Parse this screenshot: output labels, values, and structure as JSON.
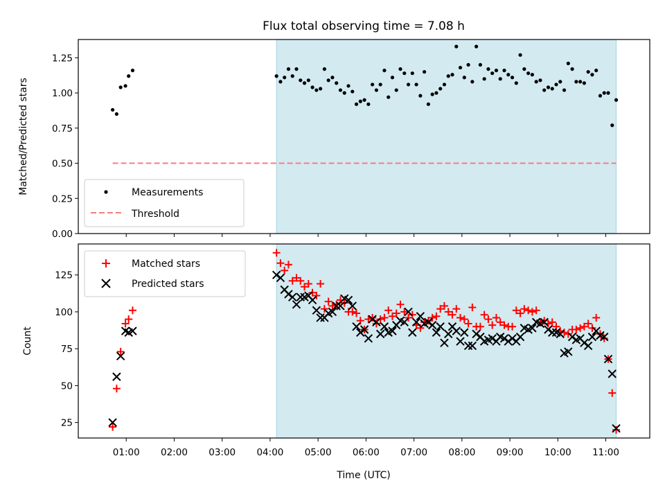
{
  "title": "Flux total observing time = 7.08 h",
  "chart_data": [
    {
      "type": "scatter",
      "ylabel": "Matched/Predicted stars",
      "ylim": [
        0,
        1.38
      ],
      "yticks": [
        0.0,
        0.25,
        0.5,
        0.75,
        1.0,
        1.25
      ],
      "ytick_labels": [
        "0.00",
        "0.25",
        "0.50",
        "0.75",
        "1.00",
        "1.25"
      ],
      "grid": false,
      "legend_position": "lower-left",
      "highlight_span": {
        "start": "04:08",
        "end": "11:13",
        "color": "#d3eaf0"
      },
      "threshold": {
        "name": "Threshold",
        "value": 0.5,
        "start": "00:43",
        "end": "11:13",
        "color": "#f07f7f",
        "style": "dashed"
      },
      "series": [
        {
          "name": "Measurements",
          "marker": "dot",
          "color": "#000000",
          "x": [
            "00:43",
            "00:48",
            "00:53",
            "00:59",
            "01:03",
            "01:08",
            "04:08",
            "04:13",
            "04:18",
            "04:23",
            "04:28",
            "04:33",
            "04:38",
            "04:43",
            "04:48",
            "04:53",
            "04:58",
            "05:03",
            "05:08",
            "05:13",
            "05:18",
            "05:23",
            "05:28",
            "05:33",
            "05:38",
            "05:43",
            "05:48",
            "05:53",
            "05:58",
            "06:03",
            "06:08",
            "06:13",
            "06:18",
            "06:23",
            "06:28",
            "06:33",
            "06:38",
            "06:43",
            "06:48",
            "06:53",
            "06:58",
            "07:03",
            "07:08",
            "07:13",
            "07:18",
            "07:23",
            "07:28",
            "07:33",
            "07:38",
            "07:43",
            "07:48",
            "07:53",
            "07:58",
            "08:03",
            "08:08",
            "08:13",
            "08:18",
            "08:23",
            "08:28",
            "08:33",
            "08:38",
            "08:43",
            "08:48",
            "08:53",
            "08:58",
            "09:03",
            "09:08",
            "09:13",
            "09:18",
            "09:23",
            "09:28",
            "09:33",
            "09:38",
            "09:43",
            "09:48",
            "09:53",
            "09:58",
            "10:03",
            "10:08",
            "10:13",
            "10:18",
            "10:23",
            "10:28",
            "10:33",
            "10:38",
            "10:43",
            "10:48",
            "10:53",
            "10:58",
            "11:03",
            "11:08",
            "11:13"
          ],
          "y": [
            0.88,
            0.85,
            1.04,
            1.05,
            1.12,
            1.16,
            1.12,
            1.08,
            1.11,
            1.17,
            1.12,
            1.17,
            1.09,
            1.07,
            1.09,
            1.04,
            1.02,
            1.03,
            1.17,
            1.09,
            1.11,
            1.07,
            1.02,
            1.0,
            1.05,
            1.01,
            0.92,
            0.94,
            0.95,
            0.92,
            1.06,
            1.02,
            1.06,
            1.16,
            0.97,
            1.11,
            1.02,
            1.17,
            1.14,
            1.06,
            1.14,
            1.06,
            0.98,
            1.15,
            0.92,
            0.99,
            1.0,
            1.03,
            1.06,
            1.12,
            1.13,
            1.33,
            1.18,
            1.11,
            1.2,
            1.08,
            1.33,
            1.2,
            1.1,
            1.17,
            1.14,
            1.16,
            1.1,
            1.16,
            1.13,
            1.11,
            1.07,
            1.27,
            1.17,
            1.14,
            1.13,
            1.08,
            1.09,
            1.02,
            1.04,
            1.03,
            1.06,
            1.08,
            1.02,
            1.21,
            1.17,
            1.08,
            1.08,
            1.07,
            1.15,
            1.13,
            1.16,
            0.98,
            1.0,
            1.0,
            0.77,
            0.95
          ]
        }
      ]
    },
    {
      "type": "scatter",
      "xlabel": "Time (UTC)",
      "ylabel": "Count",
      "xlim": [
        "00:00",
        "11:55"
      ],
      "xticks": [
        "01:00",
        "02:00",
        "03:00",
        "04:00",
        "05:00",
        "06:00",
        "07:00",
        "08:00",
        "09:00",
        "10:00",
        "11:00"
      ],
      "ylim": [
        14.5,
        146
      ],
      "yticks": [
        25,
        50,
        75,
        100,
        125
      ],
      "ytick_labels": [
        "25",
        "50",
        "75",
        "100",
        "125"
      ],
      "grid": false,
      "legend_position": "upper-left",
      "highlight_span": {
        "start": "04:08",
        "end": "11:13",
        "color": "#d3eaf0"
      },
      "series": [
        {
          "name": "Matched stars",
          "marker": "plus",
          "color": "#ff0000",
          "x": [
            "00:43",
            "00:48",
            "00:53",
            "00:59",
            "01:03",
            "01:08",
            "04:08",
            "04:13",
            "04:18",
            "04:23",
            "04:28",
            "04:33",
            "04:38",
            "04:43",
            "04:48",
            "04:53",
            "04:58",
            "05:03",
            "05:08",
            "05:13",
            "05:18",
            "05:23",
            "05:28",
            "05:33",
            "05:38",
            "05:43",
            "05:48",
            "05:53",
            "05:58",
            "06:03",
            "06:08",
            "06:13",
            "06:18",
            "06:23",
            "06:28",
            "06:33",
            "06:38",
            "06:43",
            "06:48",
            "06:53",
            "06:58",
            "07:03",
            "07:08",
            "07:13",
            "07:18",
            "07:23",
            "07:28",
            "07:33",
            "07:38",
            "07:43",
            "07:48",
            "07:53",
            "07:58",
            "08:03",
            "08:08",
            "08:13",
            "08:18",
            "08:23",
            "08:28",
            "08:33",
            "08:38",
            "08:43",
            "08:48",
            "08:53",
            "08:58",
            "09:03",
            "09:08",
            "09:13",
            "09:18",
            "09:23",
            "09:28",
            "09:33",
            "09:38",
            "09:43",
            "09:48",
            "09:53",
            "09:58",
            "10:03",
            "10:08",
            "10:13",
            "10:18",
            "10:23",
            "10:28",
            "10:33",
            "10:38",
            "10:43",
            "10:48",
            "10:53",
            "10:58",
            "11:03",
            "11:08",
            "11:13"
          ],
          "y": [
            22,
            48,
            73,
            92,
            95,
            101,
            140,
            133,
            128,
            132,
            121,
            123,
            121,
            117,
            119,
            113,
            111,
            119,
            102,
            107,
            104,
            105,
            108,
            106,
            100,
            100,
            99,
            94,
            88,
            95,
            96,
            92,
            95,
            96,
            101,
            97,
            99,
            105,
            100,
            96,
            98,
            91,
            89,
            93,
            94,
            96,
            97,
            102,
            104,
            100,
            98,
            102,
            96,
            95,
            92,
            103,
            90,
            90,
            98,
            95,
            91,
            96,
            93,
            91,
            90,
            90,
            101,
            99,
            102,
            101,
            100,
            101,
            93,
            94,
            92,
            93,
            90,
            87,
            86,
            85,
            88,
            88,
            89,
            90,
            92,
            89,
            96,
            85,
            82,
            68,
            45,
            20
          ]
        },
        {
          "name": "Predicted stars",
          "marker": "x",
          "color": "#000000",
          "x": [
            "00:43",
            "00:48",
            "00:53",
            "00:59",
            "01:03",
            "01:08",
            "04:08",
            "04:13",
            "04:18",
            "04:23",
            "04:28",
            "04:33",
            "04:38",
            "04:43",
            "04:48",
            "04:53",
            "04:58",
            "05:03",
            "05:08",
            "05:13",
            "05:18",
            "05:23",
            "05:28",
            "05:33",
            "05:38",
            "05:43",
            "05:48",
            "05:53",
            "05:58",
            "06:03",
            "06:08",
            "06:13",
            "06:18",
            "06:23",
            "06:28",
            "06:33",
            "06:38",
            "06:43",
            "06:48",
            "06:53",
            "06:58",
            "07:03",
            "07:08",
            "07:13",
            "07:18",
            "07:23",
            "07:28",
            "07:33",
            "07:38",
            "07:43",
            "07:48",
            "07:53",
            "07:58",
            "08:03",
            "08:08",
            "08:13",
            "08:18",
            "08:23",
            "08:28",
            "08:33",
            "08:38",
            "08:43",
            "08:48",
            "08:53",
            "08:58",
            "09:03",
            "09:08",
            "09:13",
            "09:18",
            "09:23",
            "09:28",
            "09:33",
            "09:38",
            "09:43",
            "09:48",
            "09:53",
            "09:58",
            "10:03",
            "10:08",
            "10:13",
            "10:18",
            "10:23",
            "10:28",
            "10:33",
            "10:38",
            "10:43",
            "10:48",
            "10:53",
            "10:58",
            "11:03",
            "11:08",
            "11:13"
          ],
          "y": [
            25,
            56,
            70,
            87,
            86,
            87,
            125,
            123,
            115,
            112,
            110,
            105,
            110,
            110,
            111,
            108,
            101,
            96,
            96,
            99,
            100,
            104,
            104,
            109,
            108,
            104,
            90,
            86,
            88,
            82,
            95,
            93,
            85,
            90,
            86,
            87,
            91,
            94,
            93,
            100,
            86,
            93,
            97,
            92,
            93,
            91,
            86,
            90,
            79,
            85,
            90,
            87,
            80,
            86,
            77,
            77,
            85,
            83,
            80,
            81,
            82,
            80,
            83,
            82,
            80,
            82,
            80,
            83,
            89,
            88,
            89,
            93,
            92,
            93,
            88,
            86,
            86,
            85,
            72,
            73,
            83,
            81,
            82,
            79,
            77,
            83,
            87,
            84,
            83,
            68,
            58,
            21
          ]
        }
      ]
    }
  ]
}
